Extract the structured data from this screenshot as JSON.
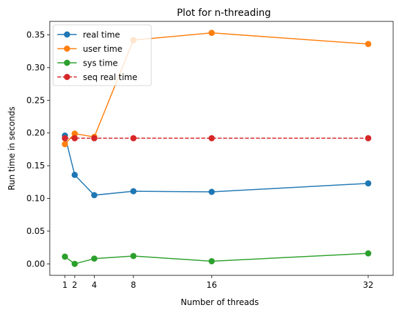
{
  "chart_data": {
    "type": "line",
    "title": "Plot for n-threading",
    "xlabel": "Number of threads",
    "ylabel": "Run time in seconds",
    "x": [
      1,
      2,
      4,
      8,
      16,
      32
    ],
    "xticks": [
      "1",
      "2",
      "4",
      "8",
      "16",
      "32"
    ],
    "yticks": [
      "0.00",
      "0.05",
      "0.10",
      "0.15",
      "0.20",
      "0.25",
      "0.30",
      "0.35"
    ],
    "xlim": [
      -0.55,
      34.55
    ],
    "ylim": [
      -0.0176,
      0.3706
    ],
    "grid": false,
    "legend_position": "top-left",
    "series": [
      {
        "name": "real time",
        "color": "#1f77b4",
        "dash": false,
        "values": [
          0.196,
          0.136,
          0.105,
          0.111,
          0.11,
          0.123
        ]
      },
      {
        "name": "user time",
        "color": "#ff7f0e",
        "dash": false,
        "values": [
          0.183,
          0.199,
          0.194,
          0.342,
          0.353,
          0.336
        ]
      },
      {
        "name": "sys time",
        "color": "#2ca02c",
        "dash": false,
        "values": [
          0.011,
          0.0,
          0.008,
          0.012,
          0.004,
          0.016
        ]
      },
      {
        "name": "seq real time",
        "color": "#d62728",
        "dash": true,
        "values": [
          0.192,
          0.192,
          0.192,
          0.192,
          0.192,
          0.192
        ]
      }
    ]
  }
}
